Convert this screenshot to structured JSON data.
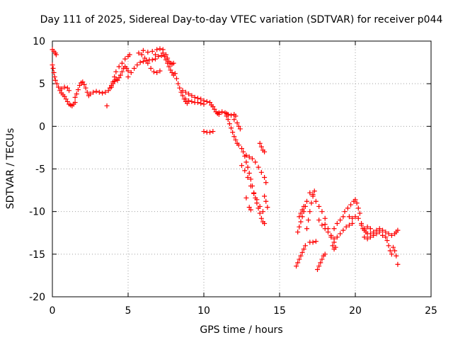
{
  "chart_data": {
    "type": "scatter",
    "title": "Day 111 of 2025, Sidereal Day-to-day VTEC variation (SDTVAR) for receiver p044",
    "xlabel": "GPS time / hours",
    "ylabel": "SDTVAR / TECUs",
    "xlim": [
      0,
      25
    ],
    "ylim": [
      -20,
      10
    ],
    "xticks": [
      0,
      5,
      10,
      15,
      20,
      25
    ],
    "yticks": [
      -20,
      -15,
      -10,
      -5,
      0,
      5,
      10
    ],
    "xtick_labels": [
      "0",
      "5",
      "10",
      "15",
      "20",
      "25"
    ],
    "ytick_labels": [
      "-20",
      "-15",
      "-10",
      "-5",
      "0",
      "5",
      "10"
    ],
    "grid": true,
    "marker": "+",
    "color": "#ff0000",
    "series": [
      {
        "name": "SDTVAR",
        "points": [
          [
            0.0,
            9.0
          ],
          [
            0.1,
            8.8
          ],
          [
            0.2,
            8.6
          ],
          [
            0.25,
            8.4
          ],
          [
            0.0,
            7.2
          ],
          [
            0.05,
            6.8
          ],
          [
            0.1,
            6.3
          ],
          [
            0.15,
            5.8
          ],
          [
            0.2,
            5.4
          ],
          [
            0.3,
            5.0
          ],
          [
            0.4,
            4.6
          ],
          [
            0.5,
            4.2
          ],
          [
            0.6,
            3.9
          ],
          [
            0.7,
            3.7
          ],
          [
            0.8,
            3.5
          ],
          [
            0.9,
            3.2
          ],
          [
            1.0,
            2.9
          ],
          [
            1.1,
            2.6
          ],
          [
            1.2,
            2.5
          ],
          [
            1.3,
            2.4
          ],
          [
            1.4,
            2.6
          ],
          [
            1.5,
            2.8
          ],
          [
            0.6,
            4.4
          ],
          [
            0.8,
            4.6
          ],
          [
            1.0,
            4.5
          ],
          [
            1.1,
            4.2
          ],
          [
            1.5,
            3.4
          ],
          [
            1.6,
            3.8
          ],
          [
            1.7,
            4.3
          ],
          [
            1.8,
            4.8
          ],
          [
            1.9,
            5.1
          ],
          [
            2.0,
            5.2
          ],
          [
            2.1,
            4.9
          ],
          [
            2.2,
            4.5
          ],
          [
            2.3,
            4.0
          ],
          [
            2.4,
            3.6
          ],
          [
            2.5,
            3.8
          ],
          [
            2.7,
            4.0
          ],
          [
            2.9,
            4.1
          ],
          [
            3.1,
            4.0
          ],
          [
            3.3,
            3.9
          ],
          [
            3.5,
            4.0
          ],
          [
            3.7,
            4.2
          ],
          [
            3.8,
            4.5
          ],
          [
            3.9,
            4.8
          ],
          [
            3.6,
            2.4
          ],
          [
            4.0,
            5.0
          ],
          [
            4.1,
            5.3
          ],
          [
            4.2,
            5.5
          ],
          [
            4.3,
            5.4
          ],
          [
            4.4,
            5.7
          ],
          [
            4.5,
            6.0
          ],
          [
            4.6,
            6.4
          ],
          [
            4.7,
            6.8
          ],
          [
            4.8,
            7.0
          ],
          [
            4.9,
            6.8
          ],
          [
            5.0,
            6.5
          ],
          [
            3.9,
            4.6
          ],
          [
            4.0,
            5.2
          ],
          [
            4.1,
            5.8
          ],
          [
            4.2,
            6.4
          ],
          [
            4.4,
            7.0
          ],
          [
            4.6,
            7.4
          ],
          [
            4.8,
            7.9
          ],
          [
            5.0,
            8.2
          ],
          [
            5.1,
            8.4
          ],
          [
            5.0,
            5.8
          ],
          [
            5.2,
            6.3
          ],
          [
            5.4,
            6.8
          ],
          [
            5.6,
            7.2
          ],
          [
            5.8,
            7.5
          ],
          [
            6.0,
            7.6
          ],
          [
            6.2,
            7.7
          ],
          [
            6.4,
            7.8
          ],
          [
            6.6,
            7.8
          ],
          [
            6.8,
            7.9
          ],
          [
            5.7,
            8.6
          ],
          [
            5.9,
            8.4
          ],
          [
            6.1,
            8.0
          ],
          [
            6.3,
            7.4
          ],
          [
            6.5,
            6.8
          ],
          [
            6.7,
            6.4
          ],
          [
            6.9,
            6.3
          ],
          [
            7.1,
            6.5
          ],
          [
            6.0,
            8.9
          ],
          [
            6.3,
            8.7
          ],
          [
            6.6,
            8.8
          ],
          [
            6.9,
            9.0
          ],
          [
            7.1,
            9.1
          ],
          [
            7.3,
            9.0
          ],
          [
            6.8,
            8.4
          ],
          [
            7.0,
            8.2
          ],
          [
            7.2,
            8.3
          ],
          [
            7.3,
            8.6
          ],
          [
            7.4,
            8.2
          ],
          [
            7.5,
            7.8
          ],
          [
            7.6,
            7.4
          ],
          [
            7.7,
            7.0
          ],
          [
            7.8,
            6.6
          ],
          [
            7.9,
            6.3
          ],
          [
            8.0,
            6.0
          ],
          [
            7.5,
            8.4
          ],
          [
            7.6,
            8.0
          ],
          [
            7.7,
            7.6
          ],
          [
            7.8,
            7.4
          ],
          [
            7.9,
            7.3
          ],
          [
            8.0,
            7.4
          ],
          [
            8.1,
            6.2
          ],
          [
            8.2,
            5.6
          ],
          [
            8.3,
            5.0
          ],
          [
            8.4,
            4.5
          ],
          [
            8.5,
            4.0
          ],
          [
            8.6,
            3.6
          ],
          [
            8.7,
            3.2
          ],
          [
            8.8,
            2.9
          ],
          [
            8.9,
            2.7
          ],
          [
            8.6,
            4.2
          ],
          [
            8.8,
            4.0
          ],
          [
            9.0,
            3.8
          ],
          [
            9.2,
            3.6
          ],
          [
            9.4,
            3.4
          ],
          [
            9.6,
            3.3
          ],
          [
            9.8,
            3.2
          ],
          [
            10.0,
            3.0
          ],
          [
            10.2,
            2.9
          ],
          [
            10.4,
            2.8
          ],
          [
            8.8,
            3.2
          ],
          [
            9.0,
            3.0
          ],
          [
            9.2,
            2.9
          ],
          [
            9.4,
            2.8
          ],
          [
            9.6,
            2.8
          ],
          [
            9.8,
            2.7
          ],
          [
            10.0,
            2.6
          ],
          [
            10.5,
            2.5
          ],
          [
            10.6,
            2.3
          ],
          [
            10.7,
            2.0
          ],
          [
            10.8,
            1.7
          ],
          [
            10.9,
            1.5
          ],
          [
            11.0,
            1.4
          ],
          [
            11.0,
            1.6
          ],
          [
            11.2,
            1.7
          ],
          [
            11.4,
            1.6
          ],
          [
            11.5,
            1.5
          ],
          [
            11.6,
            1.4
          ],
          [
            11.8,
            1.3
          ],
          [
            12.0,
            1.4
          ],
          [
            12.1,
            1.2
          ],
          [
            10.0,
            -0.6
          ],
          [
            10.2,
            -0.7
          ],
          [
            10.4,
            -0.7
          ],
          [
            10.6,
            -0.6
          ],
          [
            11.5,
            1.2
          ],
          [
            11.6,
            0.8
          ],
          [
            11.7,
            0.3
          ],
          [
            11.8,
            -0.2
          ],
          [
            11.9,
            -0.7
          ],
          [
            12.0,
            -1.2
          ],
          [
            12.1,
            -1.6
          ],
          [
            12.2,
            -2.0
          ],
          [
            12.0,
            0.8
          ],
          [
            12.2,
            0.4
          ],
          [
            12.3,
            0.0
          ],
          [
            12.4,
            -0.3
          ],
          [
            12.3,
            -2.2
          ],
          [
            12.5,
            -2.6
          ],
          [
            12.6,
            -3.0
          ],
          [
            12.7,
            -3.5
          ],
          [
            12.8,
            -4.2
          ],
          [
            12.9,
            -4.8
          ],
          [
            13.0,
            -5.5
          ],
          [
            13.1,
            -6.2
          ],
          [
            13.2,
            -7.0
          ],
          [
            13.3,
            -7.8
          ],
          [
            12.5,
            -4.6
          ],
          [
            12.7,
            -5.2
          ],
          [
            12.9,
            -6.0
          ],
          [
            13.1,
            -7.0
          ],
          [
            13.3,
            -7.9
          ],
          [
            13.5,
            -8.6
          ],
          [
            13.7,
            -9.4
          ],
          [
            13.9,
            -10.0
          ],
          [
            13.4,
            -8.4
          ],
          [
            13.5,
            -9.0
          ],
          [
            13.6,
            -9.6
          ],
          [
            13.7,
            -10.2
          ],
          [
            13.8,
            -10.8
          ],
          [
            13.9,
            -11.2
          ],
          [
            14.0,
            -11.4
          ],
          [
            12.8,
            -3.4
          ],
          [
            13.0,
            -3.6
          ],
          [
            13.2,
            -3.8
          ],
          [
            13.4,
            -4.2
          ],
          [
            13.6,
            -4.8
          ],
          [
            13.8,
            -5.4
          ],
          [
            14.0,
            -6.0
          ],
          [
            14.1,
            -6.6
          ],
          [
            13.7,
            -2.0
          ],
          [
            13.8,
            -2.4
          ],
          [
            13.9,
            -2.8
          ],
          [
            14.0,
            -3.0
          ],
          [
            14.0,
            -8.2
          ],
          [
            14.1,
            -8.8
          ],
          [
            14.2,
            -9.5
          ],
          [
            13.0,
            -9.5
          ],
          [
            13.1,
            -9.8
          ],
          [
            12.8,
            -8.4
          ],
          [
            16.1,
            -16.4
          ],
          [
            16.2,
            -16.0
          ],
          [
            16.3,
            -15.6
          ],
          [
            16.4,
            -15.2
          ],
          [
            16.5,
            -14.8
          ],
          [
            16.6,
            -14.4
          ],
          [
            16.7,
            -14.0
          ],
          [
            16.2,
            -12.4
          ],
          [
            16.3,
            -11.8
          ],
          [
            16.4,
            -11.2
          ],
          [
            16.5,
            -10.6
          ],
          [
            16.6,
            -10.0
          ],
          [
            16.7,
            -9.4
          ],
          [
            16.8,
            -8.8
          ],
          [
            16.3,
            -10.6
          ],
          [
            16.4,
            -10.2
          ],
          [
            16.5,
            -9.8
          ],
          [
            16.6,
            -9.4
          ],
          [
            16.8,
            -12.0
          ],
          [
            16.9,
            -11.0
          ],
          [
            17.0,
            -10.0
          ],
          [
            17.1,
            -9.0
          ],
          [
            17.2,
            -8.0
          ],
          [
            17.3,
            -7.6
          ],
          [
            17.0,
            -7.8
          ],
          [
            17.2,
            -8.2
          ],
          [
            17.4,
            -8.8
          ],
          [
            17.6,
            -9.4
          ],
          [
            17.8,
            -10.0
          ],
          [
            18.0,
            -10.8
          ],
          [
            17.0,
            -13.6
          ],
          [
            17.2,
            -13.6
          ],
          [
            17.4,
            -13.5
          ],
          [
            17.5,
            -16.8
          ],
          [
            17.6,
            -16.4
          ],
          [
            17.7,
            -16.0
          ],
          [
            17.8,
            -15.6
          ],
          [
            17.9,
            -15.2
          ],
          [
            18.0,
            -15.0
          ],
          [
            17.6,
            -11.0
          ],
          [
            17.8,
            -11.6
          ],
          [
            18.0,
            -12.0
          ],
          [
            18.2,
            -12.4
          ],
          [
            18.4,
            -12.8
          ],
          [
            18.6,
            -13.2
          ],
          [
            18.0,
            -11.5
          ],
          [
            18.2,
            -12.0
          ],
          [
            18.4,
            -13.0
          ],
          [
            18.5,
            -14.0
          ],
          [
            18.6,
            -14.4
          ],
          [
            18.7,
            -14.2
          ],
          [
            18.6,
            -12.0
          ],
          [
            18.8,
            -11.4
          ],
          [
            19.0,
            -11.0
          ],
          [
            19.2,
            -10.6
          ],
          [
            18.6,
            -13.6
          ],
          [
            18.8,
            -13.0
          ],
          [
            19.0,
            -12.6
          ],
          [
            19.2,
            -12.2
          ],
          [
            19.4,
            -11.8
          ],
          [
            19.6,
            -11.6
          ],
          [
            19.8,
            -11.4
          ],
          [
            19.3,
            -10.0
          ],
          [
            19.5,
            -9.6
          ],
          [
            19.7,
            -9.2
          ],
          [
            19.9,
            -8.8
          ],
          [
            20.0,
            -8.6
          ],
          [
            20.1,
            -9.0
          ],
          [
            20.2,
            -9.6
          ],
          [
            20.3,
            -10.2
          ],
          [
            19.6,
            -10.6
          ],
          [
            19.8,
            -10.8
          ],
          [
            20.0,
            -10.6
          ],
          [
            20.2,
            -10.8
          ],
          [
            20.4,
            -11.4
          ],
          [
            20.5,
            -12.0
          ],
          [
            20.6,
            -12.2
          ],
          [
            20.7,
            -12.4
          ],
          [
            20.8,
            -12.6
          ],
          [
            21.0,
            -12.6
          ],
          [
            21.2,
            -12.4
          ],
          [
            21.4,
            -12.2
          ],
          [
            21.6,
            -12.0
          ],
          [
            20.6,
            -13.0
          ],
          [
            20.8,
            -13.2
          ],
          [
            21.0,
            -13.0
          ],
          [
            21.2,
            -12.8
          ],
          [
            21.4,
            -12.6
          ],
          [
            21.6,
            -12.4
          ],
          [
            21.8,
            -12.2
          ],
          [
            20.4,
            -11.6
          ],
          [
            20.6,
            -12.0
          ],
          [
            20.8,
            -11.8
          ],
          [
            21.0,
            -12.0
          ],
          [
            21.8,
            -12.8
          ],
          [
            22.0,
            -13.0
          ],
          [
            22.1,
            -13.4
          ],
          [
            22.2,
            -14.0
          ],
          [
            22.3,
            -14.6
          ],
          [
            22.4,
            -15.0
          ],
          [
            22.0,
            -12.4
          ],
          [
            22.2,
            -12.6
          ],
          [
            22.4,
            -12.8
          ],
          [
            22.5,
            -14.2
          ],
          [
            22.6,
            -14.6
          ],
          [
            22.7,
            -15.2
          ],
          [
            22.8,
            -16.2
          ],
          [
            22.6,
            -12.6
          ],
          [
            22.7,
            -12.4
          ],
          [
            22.8,
            -12.2
          ]
        ]
      }
    ]
  }
}
